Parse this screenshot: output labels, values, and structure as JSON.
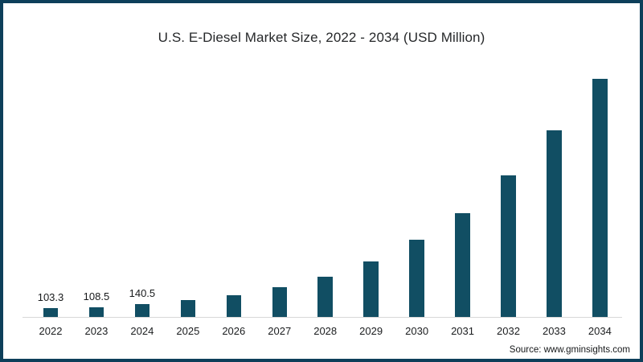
{
  "frame": {
    "border_color": "#0d3f5a",
    "background_color": "#ffffff"
  },
  "chart_data": {
    "type": "bar",
    "title": "U.S. E-Diesel Market Size, 2022 - 2034 (USD Million)",
    "xlabel": "",
    "ylabel": "",
    "categories": [
      "2022",
      "2023",
      "2024",
      "2025",
      "2026",
      "2027",
      "2028",
      "2029",
      "2030",
      "2031",
      "2032",
      "2033",
      "2034"
    ],
    "values": [
      103.3,
      108.5,
      140.5,
      190,
      245,
      330,
      450,
      620,
      860,
      1160,
      1585,
      2090,
      2665
    ],
    "data_labels": [
      "103.3",
      "108.5",
      "140.5",
      "",
      "",
      "",
      "",
      "",
      "",
      "",
      "",
      "",
      ""
    ],
    "ylim": [
      0,
      2800
    ],
    "grid": false,
    "legend": false,
    "y_axis_shown": false,
    "bar_color": "#114e63",
    "axis_line_color": "#d8d8d8"
  },
  "source": {
    "label": "Source: www.gminsights.com"
  }
}
